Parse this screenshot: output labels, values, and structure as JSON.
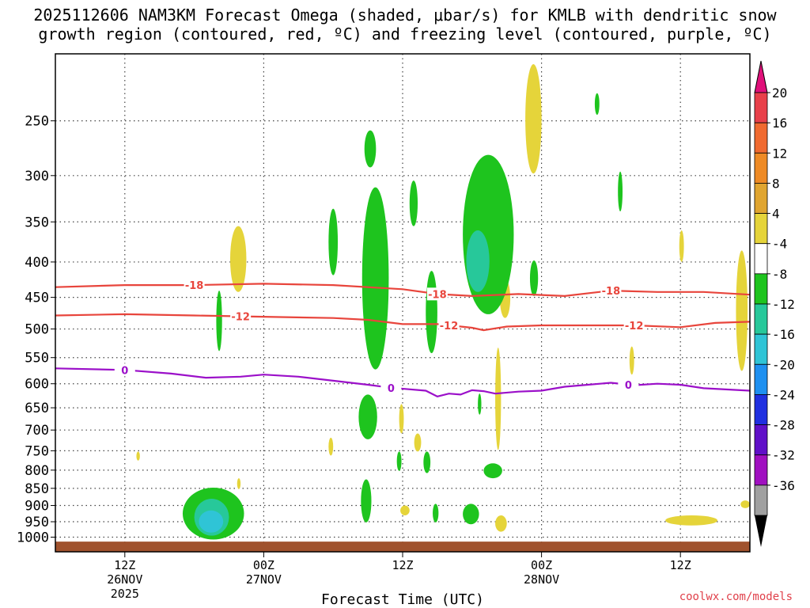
{
  "title_line1": "2025112606 NAM3KM Forecast Omega (shaded, μbar/s) for KMLB with dendritic snow",
  "title_line2": "growth region (contoured, red, ºC) and freezing level (contoured, purple, ºC)",
  "credit": "coolwx.com/models",
  "colors": {
    "pos4": "#e5d43a",
    "neg4": "#1ec41e",
    "neg8": "#27c89a",
    "neg12": "#2fc4d6",
    "snow_contour": "#e8453c",
    "freeze_contour": "#9b10c9",
    "ground": "#a0522d"
  },
  "chart_data": {
    "type": "heatmap",
    "title": "2025112606 NAM3KM Forecast Omega (shaded, μbar/s) for KMLB with dendritic snow growth region (contoured, red, ºC) and freezing level (contoured, purple, ºC)",
    "xlabel": "Forecast Time (UTC)",
    "ylabel": "",
    "x_unit": "hours since 2025-11-26 06Z",
    "x_range": [
      0,
      60
    ],
    "y_scale": "log-pressure",
    "y_range_hpa": [
      1050,
      200
    ],
    "y_ticks": [
      250,
      300,
      350,
      400,
      450,
      500,
      550,
      600,
      650,
      700,
      750,
      800,
      850,
      900,
      950,
      1000
    ],
    "x_ticks": [
      {
        "h": 6,
        "lines": [
          "12Z",
          "26NOV",
          "2025"
        ]
      },
      {
        "h": 18,
        "lines": [
          "00Z",
          "27NOV"
        ]
      },
      {
        "h": 30,
        "lines": [
          "12Z"
        ]
      },
      {
        "h": 42,
        "lines": [
          "00Z",
          "28NOV"
        ]
      },
      {
        "h": 54,
        "lines": [
          "12Z"
        ]
      }
    ],
    "colorbar": {
      "labels": [
        "20",
        "16",
        "12",
        "8",
        "4",
        "-4",
        "-8",
        "-12",
        "-16",
        "-20",
        "-24",
        "-28",
        "-32",
        "-36"
      ],
      "colors": [
        "#e8404a",
        "#f06a30",
        "#ee8a25",
        "#e0a530",
        "#e5d43a",
        "#ffffff",
        "#1ec41e",
        "#27c89a",
        "#2fc4d6",
        "#1e90f0",
        "#2030e0",
        "#6010c8",
        "#a010c0",
        "#a0a0a0",
        "#000000"
      ],
      "top_arrow": "#e0107a",
      "bottom_arrow": "#000000"
    },
    "contours": [
      {
        "name": "-18",
        "color": "#e8453c",
        "label_at": [
          12,
          33,
          48
        ],
        "points": [
          [
            0,
            435
          ],
          [
            6,
            432
          ],
          [
            12,
            432
          ],
          [
            18,
            430
          ],
          [
            24,
            432
          ],
          [
            30,
            438
          ],
          [
            33,
            445
          ],
          [
            36,
            448
          ],
          [
            40,
            445
          ],
          [
            44,
            448
          ],
          [
            48,
            440
          ],
          [
            52,
            442
          ],
          [
            56,
            442
          ],
          [
            60,
            446
          ]
        ]
      },
      {
        "name": "-12",
        "color": "#e8453c",
        "label_at": [
          16,
          34,
          50
        ],
        "points": [
          [
            0,
            478
          ],
          [
            6,
            476
          ],
          [
            12,
            478
          ],
          [
            18,
            480
          ],
          [
            24,
            482
          ],
          [
            27,
            485
          ],
          [
            30,
            492
          ],
          [
            33,
            492
          ],
          [
            36,
            498
          ],
          [
            37,
            502
          ],
          [
            39,
            496
          ],
          [
            42,
            494
          ],
          [
            46,
            494
          ],
          [
            50,
            494
          ],
          [
            54,
            497
          ],
          [
            57,
            490
          ],
          [
            60,
            488
          ]
        ]
      },
      {
        "name": "0",
        "color": "#9b10c9",
        "label_at": [
          6,
          29,
          49.5
        ],
        "points": [
          [
            0,
            570
          ],
          [
            6,
            573
          ],
          [
            10,
            580
          ],
          [
            13,
            588
          ],
          [
            16,
            586
          ],
          [
            18,
            582
          ],
          [
            21,
            586
          ],
          [
            24,
            594
          ],
          [
            27,
            602
          ],
          [
            29,
            608
          ],
          [
            32,
            614
          ],
          [
            33,
            626
          ],
          [
            34,
            620
          ],
          [
            35,
            622
          ],
          [
            36,
            613
          ],
          [
            37,
            615
          ],
          [
            38,
            620
          ],
          [
            40,
            616
          ],
          [
            42,
            614
          ],
          [
            44,
            606
          ],
          [
            46,
            602
          ],
          [
            48,
            598
          ],
          [
            50,
            603
          ],
          [
            52,
            600
          ],
          [
            54,
            602
          ],
          [
            56,
            609
          ],
          [
            60,
            614
          ]
        ]
      }
    ],
    "omega_regions": [
      {
        "value": "4",
        "t": [
          15.1,
          16.5
        ],
        "p": [
          355,
          442
        ]
      },
      {
        "value": "4",
        "t": [
          40.6,
          42.0
        ],
        "p": [
          207,
          298
        ]
      },
      {
        "value": "4",
        "t": [
          38.4,
          39.3
        ],
        "p": [
          423,
          482
        ]
      },
      {
        "value": "4",
        "t": [
          38.0,
          38.5
        ],
        "p": [
          532,
          748
        ]
      },
      {
        "value": "4",
        "t": [
          58.8,
          59.8
        ],
        "p": [
          385,
          575
        ]
      },
      {
        "value": "4",
        "t": [
          53.9,
          54.3
        ],
        "p": [
          360,
          400
        ]
      },
      {
        "value": "4",
        "t": [
          49.6,
          50.0
        ],
        "p": [
          530,
          582
        ]
      },
      {
        "value": "4",
        "t": [
          59.2,
          60.0
        ],
        "p": [
          885,
          908
        ]
      },
      {
        "value": "4",
        "t": [
          52.7,
          57.2
        ],
        "p": [
          930,
          962
        ]
      },
      {
        "value": "4",
        "t": [
          38.0,
          39.0
        ],
        "p": [
          930,
          982
        ]
      },
      {
        "value": "4",
        "t": [
          29.8,
          30.6
        ],
        "p": [
          900,
          930
        ]
      },
      {
        "value": "4",
        "t": [
          31.0,
          31.6
        ],
        "p": [
          708,
          752
        ]
      },
      {
        "value": "4",
        "t": [
          29.7,
          30.1
        ],
        "p": [
          642,
          708
        ]
      },
      {
        "value": "4",
        "t": [
          23.6,
          24.0
        ],
        "p": [
          718,
          762
        ]
      },
      {
        "value": "4",
        "t": [
          7.0,
          7.3
        ],
        "p": [
          752,
          775
        ]
      },
      {
        "value": "4",
        "t": [
          15.7,
          16.0
        ],
        "p": [
          822,
          852
        ]
      },
      {
        "value": "-4",
        "t": [
          11.0,
          16.3
        ],
        "p": [
          848,
          1008
        ]
      },
      {
        "value": "-8",
        "t": [
          12.0,
          15.0
        ],
        "p": [
          880,
          995
        ]
      },
      {
        "value": "-12",
        "t": [
          12.4,
          14.5
        ],
        "p": [
          915,
          985
        ]
      },
      {
        "value": "-4",
        "t": [
          13.9,
          14.4
        ],
        "p": [
          440,
          538
        ]
      },
      {
        "value": "-4",
        "t": [
          23.6,
          24.4
        ],
        "p": [
          335,
          418
        ]
      },
      {
        "value": "-4",
        "t": [
          26.7,
          27.7
        ],
        "p": [
          258,
          292
        ]
      },
      {
        "value": "-4",
        "t": [
          26.5,
          28.8
        ],
        "p": [
          312,
          572
        ]
      },
      {
        "value": "-4",
        "t": [
          30.6,
          31.3
        ],
        "p": [
          305,
          355
        ]
      },
      {
        "value": "-4",
        "t": [
          32.0,
          33.0
        ],
        "p": [
          412,
          542
        ]
      },
      {
        "value": "-4",
        "t": [
          35.2,
          39.6
        ],
        "p": [
          280,
          476
        ]
      },
      {
        "value": "-8",
        "t": [
          35.5,
          37.5
        ],
        "p": [
          360,
          442
        ]
      },
      {
        "value": "-4",
        "t": [
          41.0,
          41.7
        ],
        "p": [
          398,
          448
        ]
      },
      {
        "value": "-4",
        "t": [
          46.6,
          47.0
        ],
        "p": [
          228,
          245
        ]
      },
      {
        "value": "-4",
        "t": [
          48.6,
          49.0
        ],
        "p": [
          296,
          338
        ]
      },
      {
        "value": "-4",
        "t": [
          26.2,
          27.8
        ],
        "p": [
          622,
          722
        ]
      },
      {
        "value": "-4",
        "t": [
          29.5,
          29.9
        ],
        "p": [
          752,
          802
        ]
      },
      {
        "value": "-4",
        "t": [
          26.4,
          27.3
        ],
        "p": [
          825,
          952
        ]
      },
      {
        "value": "-4",
        "t": [
          31.8,
          32.4
        ],
        "p": [
          752,
          808
        ]
      },
      {
        "value": "-4",
        "t": [
          32.6,
          33.1
        ],
        "p": [
          895,
          952
        ]
      },
      {
        "value": "-4",
        "t": [
          35.2,
          36.6
        ],
        "p": [
          895,
          958
        ]
      },
      {
        "value": "-4",
        "t": [
          37.0,
          38.6
        ],
        "p": [
          782,
          822
        ]
      },
      {
        "value": "-4",
        "t": [
          36.5,
          36.8
        ],
        "p": [
          620,
          665
        ]
      }
    ]
  }
}
